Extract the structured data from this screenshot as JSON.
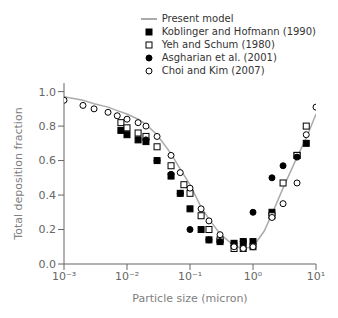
{
  "chart_data": {
    "type": "line",
    "xlabel": "Particle size (micron)",
    "ylabel": "Total deposition fraction",
    "log": "x",
    "xlim": [
      0.001,
      10
    ],
    "xticks": [
      {
        "value": 0.001,
        "label": "10⁻³"
      },
      {
        "value": 0.01,
        "label": "10⁻²"
      },
      {
        "value": 0.1,
        "label": "10⁻¹"
      },
      {
        "value": 1,
        "label": "10⁰"
      },
      {
        "value": 10,
        "label": "10¹"
      }
    ],
    "ylim": [
      0.0,
      1.05
    ],
    "yticks": [
      {
        "value": 0.0,
        "label": "0.0"
      },
      0.2,
      0.4,
      0.6,
      0.8,
      {
        "value": 1.0,
        "label": "1.0"
      }
    ],
    "legend": "upper right",
    "series": [
      {
        "name": "Present model",
        "type": "line",
        "color": "#aaaaaa",
        "x": [
          0.001,
          0.002,
          0.003,
          0.005,
          0.007,
          0.01,
          0.015,
          0.02,
          0.03,
          0.05,
          0.07,
          0.1,
          0.15,
          0.2,
          0.3,
          0.5,
          0.7,
          1.0,
          1.5,
          2.0,
          3.0,
          5.0,
          7.0,
          10.0
        ],
        "values": [
          0.97,
          0.95,
          0.93,
          0.91,
          0.89,
          0.87,
          0.84,
          0.81,
          0.75,
          0.64,
          0.55,
          0.46,
          0.33,
          0.26,
          0.175,
          0.105,
          0.09,
          0.1,
          0.19,
          0.29,
          0.44,
          0.62,
          0.73,
          0.87
        ]
      },
      {
        "name": "Koblinger and Hofmann (1990)",
        "type": "scatter",
        "color": "#000000",
        "marker": "square",
        "x": [
          0.008,
          0.01,
          0.015,
          0.02,
          0.03,
          0.05,
          0.07,
          0.1,
          0.15,
          0.2,
          0.3,
          0.5,
          0.7,
          1.0,
          2.0,
          5.0,
          7.0
        ],
        "values": [
          0.775,
          0.75,
          0.72,
          0.71,
          0.6,
          0.51,
          0.41,
          0.32,
          0.2,
          0.14,
          0.13,
          0.12,
          0.13,
          0.13,
          0.3,
          0.63,
          0.7
        ]
      },
      {
        "name": "Yeh and Schum (1980)",
        "type": "scatter",
        "color": "#000000",
        "marker": "square-open",
        "x": [
          0.008,
          0.01,
          0.015,
          0.02,
          0.03,
          0.05,
          0.08,
          0.1,
          0.15,
          0.2,
          0.3,
          0.5,
          0.7,
          1.0,
          2.0,
          3.0,
          5.0,
          7.0
        ],
        "values": [
          0.82,
          0.79,
          0.76,
          0.74,
          0.68,
          0.57,
          0.46,
          0.41,
          0.28,
          0.2,
          0.14,
          0.09,
          0.09,
          0.1,
          0.28,
          0.47,
          0.63,
          0.8
        ]
      },
      {
        "name": "Asgharian et al. (2001)",
        "type": "scatter",
        "color": "#000000",
        "marker": "circle",
        "x": [
          0.02,
          0.03,
          0.05,
          0.07,
          0.1,
          0.2,
          0.3,
          0.5,
          0.7,
          1.0,
          2.0,
          3.0,
          5.0
        ],
        "values": [
          0.72,
          0.6,
          0.52,
          0.41,
          0.2,
          0.14,
          0.13,
          0.12,
          0.13,
          0.3,
          0.5,
          0.57,
          0.62
        ]
      },
      {
        "name": "Choi and Kim (2007)",
        "type": "scatter",
        "color": "#000000",
        "marker": "circle-open",
        "x": [
          0.001,
          0.002,
          0.003,
          0.005,
          0.007,
          0.01,
          0.015,
          0.02,
          0.03,
          0.05,
          0.07,
          0.1,
          0.15,
          0.2,
          0.3,
          0.5,
          0.7,
          1.0,
          2.0,
          3.0,
          5.0,
          7.0,
          10.0
        ],
        "values": [
          0.95,
          0.92,
          0.9,
          0.88,
          0.86,
          0.84,
          0.82,
          0.8,
          0.74,
          0.63,
          0.53,
          0.44,
          0.32,
          0.25,
          0.17,
          0.1,
          0.09,
          0.1,
          0.27,
          0.35,
          0.47,
          0.75,
          0.91
        ]
      }
    ]
  }
}
